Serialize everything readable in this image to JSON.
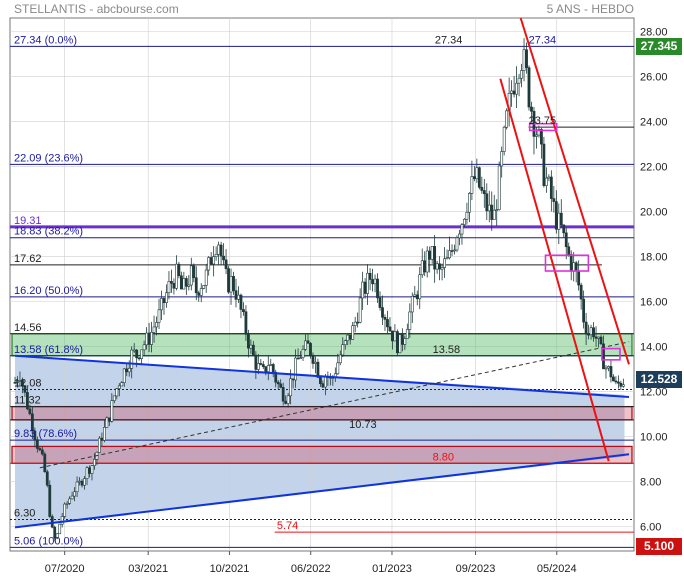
{
  "header": {
    "left": "STELLANTIS - abcbourse.com",
    "right": "5 ANS - HEBDO"
  },
  "colors": {
    "background": "#ffffff",
    "grid": "#cfcfcf",
    "candles": "#1f3a3a",
    "fib_lines": "#1a1a8a",
    "fib_labels": "#1a1aa0",
    "channel": "#ee1111",
    "trendline": "#1133dd",
    "level_1931": "#6a2fd0",
    "green_zone": "#5cbf6a",
    "red_zone": "#cc3344",
    "magenta_box": "#dd33dd",
    "blue_fill": "#b8cde6",
    "last_price_tag": "#1c3e5a",
    "high_tag": "#2a8a2a",
    "low_tag": "#cc1111"
  },
  "price_tags": {
    "high": "27.345",
    "last": "12.528",
    "low": "5.100"
  },
  "chart_data": {
    "type": "candlestick",
    "x_axis": {
      "ticks": [
        "07/2020",
        "03/2021",
        "10/2021",
        "06/2022",
        "01/2023",
        "09/2023",
        "05/2024"
      ],
      "start": "2020-01",
      "end": "2024-10"
    },
    "y_axis": {
      "ticks": [
        "6.00",
        "8.00",
        "10.00",
        "12.00",
        "14.00",
        "16.00",
        "18.00",
        "20.00",
        "22.00",
        "24.00",
        "26.00",
        "28.00"
      ],
      "ylim": [
        4.9,
        28.6
      ]
    },
    "price_path": [
      [
        0,
        12.4
      ],
      [
        4,
        12.9
      ],
      [
        8,
        12.0
      ],
      [
        12,
        11.2
      ],
      [
        16,
        10.4
      ],
      [
        20,
        9.6
      ],
      [
        24,
        9.0
      ],
      [
        28,
        8.0
      ],
      [
        32,
        6.0
      ],
      [
        36,
        5.3
      ],
      [
        40,
        6.2
      ],
      [
        44,
        6.8
      ],
      [
        48,
        7.2
      ],
      [
        52,
        7.6
      ],
      [
        56,
        7.8
      ],
      [
        60,
        8.1
      ],
      [
        64,
        8.5
      ],
      [
        68,
        8.7
      ],
      [
        72,
        9.2
      ],
      [
        76,
        9.9
      ],
      [
        80,
        10.4
      ],
      [
        84,
        11.0
      ],
      [
        88,
        11.8
      ],
      [
        92,
        12.4
      ],
      [
        96,
        12.8
      ],
      [
        100,
        13.3
      ],
      [
        104,
        13.7
      ],
      [
        108,
        13.6
      ],
      [
        112,
        14.0
      ],
      [
        116,
        14.2
      ],
      [
        120,
        14.5
      ],
      [
        124,
        15.0
      ],
      [
        128,
        15.4
      ],
      [
        132,
        16.0
      ],
      [
        136,
        16.6
      ],
      [
        140,
        17.0
      ],
      [
        144,
        17.2
      ],
      [
        148,
        16.4
      ],
      [
        152,
        16.8
      ],
      [
        156,
        17.2
      ],
      [
        160,
        16.4
      ],
      [
        164,
        16.8
      ],
      [
        168,
        16.9
      ],
      [
        172,
        17.6
      ],
      [
        176,
        18.4
      ],
      [
        180,
        18.8
      ],
      [
        184,
        17.6
      ],
      [
        188,
        16.8
      ],
      [
        192,
        16.9
      ],
      [
        196,
        16.4
      ],
      [
        200,
        15.6
      ],
      [
        204,
        14.8
      ],
      [
        208,
        14.0
      ],
      [
        212,
        13.4
      ],
      [
        216,
        13.0
      ],
      [
        220,
        12.8
      ],
      [
        224,
        13.3
      ],
      [
        228,
        13.0
      ],
      [
        232,
        12.4
      ],
      [
        236,
        12.0
      ],
      [
        240,
        11.8
      ],
      [
        244,
        12.4
      ],
      [
        248,
        13.0
      ],
      [
        252,
        13.6
      ],
      [
        256,
        13.8
      ],
      [
        260,
        14.0
      ],
      [
        264,
        13.6
      ],
      [
        268,
        13.0
      ],
      [
        272,
        12.4
      ],
      [
        276,
        12.8
      ],
      [
        280,
        12.4
      ],
      [
        284,
        13.0
      ],
      [
        288,
        13.6
      ],
      [
        292,
        14.0
      ],
      [
        296,
        14.4
      ],
      [
        300,
        14.8
      ],
      [
        304,
        15.6
      ],
      [
        308,
        16.4
      ],
      [
        312,
        16.8
      ],
      [
        316,
        17.2
      ],
      [
        320,
        16.8
      ],
      [
        324,
        16.0
      ],
      [
        328,
        15.4
      ],
      [
        332,
        14.8
      ],
      [
        336,
        14.4
      ],
      [
        340,
        14.0
      ],
      [
        344,
        14.4
      ],
      [
        348,
        15.2
      ],
      [
        352,
        15.8
      ],
      [
        356,
        16.4
      ],
      [
        360,
        17.2
      ],
      [
        364,
        17.8
      ],
      [
        368,
        18.2
      ],
      [
        372,
        17.6
      ],
      [
        376,
        17.2
      ],
      [
        380,
        17.6
      ],
      [
        384,
        17.8
      ],
      [
        388,
        18.4
      ],
      [
        392,
        19.2
      ],
      [
        396,
        19.6
      ],
      [
        400,
        20.4
      ],
      [
        404,
        21.0
      ],
      [
        408,
        21.6
      ],
      [
        412,
        21.0
      ],
      [
        416,
        20.4
      ],
      [
        420,
        20.0
      ],
      [
        424,
        19.6
      ],
      [
        428,
        21.0
      ],
      [
        432,
        22.6
      ],
      [
        436,
        24.2
      ],
      [
        440,
        25.4
      ],
      [
        444,
        26.2
      ],
      [
        448,
        27.0
      ],
      [
        452,
        26.4
      ],
      [
        456,
        25.0
      ],
      [
        460,
        24.0
      ],
      [
        464,
        23.2
      ],
      [
        468,
        21.8
      ],
      [
        472,
        21.2
      ],
      [
        476,
        20.4
      ],
      [
        480,
        19.6
      ],
      [
        484,
        19.2
      ],
      [
        488,
        18.4
      ],
      [
        492,
        17.8
      ],
      [
        496,
        17.4
      ],
      [
        500,
        16.6
      ],
      [
        504,
        15.2
      ],
      [
        508,
        14.6
      ],
      [
        512,
        14.8
      ],
      [
        516,
        14.2
      ],
      [
        520,
        13.6
      ],
      [
        524,
        13.0
      ],
      [
        528,
        12.8
      ],
      [
        532,
        12.2
      ],
      [
        536,
        12.4
      ],
      [
        540,
        12.5
      ]
    ],
    "lines": [
      {
        "price": 27.34,
        "label": "27.34  (0.0%)",
        "right_label": "27.34",
        "style": "fib"
      },
      {
        "price": 23.75,
        "right_label": "23.75",
        "style": "black"
      },
      {
        "price": 22.09,
        "label": "22.09  (23.6%)",
        "style": "fib"
      },
      {
        "price": 19.31,
        "label": "19.31",
        "style": "thick-purple"
      },
      {
        "price": 18.83,
        "label": "18.83  (38.2%)",
        "style": "fib"
      },
      {
        "price": 17.62,
        "label": "17.62",
        "style": "black"
      },
      {
        "price": 16.2,
        "label": "16.20  (50.0%)",
        "style": "fib"
      },
      {
        "price": 14.56,
        "label": "14.56",
        "style": "black"
      },
      {
        "price": 13.58,
        "label": "13.58  (61.8%)",
        "middle_label": "13.58",
        "style": "fib"
      },
      {
        "price": 12.08,
        "label": "12.08",
        "style": "dotted"
      },
      {
        "price": 11.32,
        "label": "11.32",
        "style": "black"
      },
      {
        "price": 10.73,
        "middle_label": "10.73",
        "style": "black"
      },
      {
        "price": 9.83,
        "label": "9.83  (78.6%)",
        "style": "fib"
      },
      {
        "price": 8.8,
        "middle_label": "8.80",
        "style": "red"
      },
      {
        "price": 6.3,
        "label": "6.30",
        "style": "dotted"
      },
      {
        "price": 5.74,
        "middle_label": "5.74",
        "style": "red"
      },
      {
        "price": 5.06,
        "label": "5.06  (100.0%)",
        "style": "fib"
      }
    ],
    "zones": [
      {
        "name": "green",
        "from": 13.58,
        "to": 14.56
      },
      {
        "name": "red",
        "from": 10.73,
        "to": 11.32
      },
      {
        "name": "red-thin",
        "from": 8.8,
        "to": 9.55
      }
    ]
  }
}
